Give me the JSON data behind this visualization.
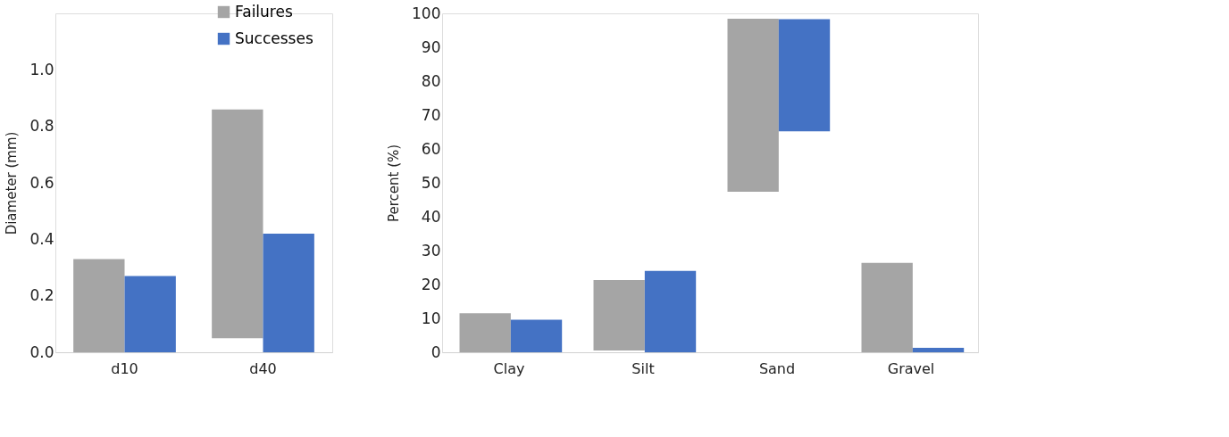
{
  "chart_data": [
    {
      "type": "bar",
      "ylabel": "Diameter (mm)",
      "categories": [
        "d10",
        "d40"
      ],
      "ylim": [
        0,
        1.2
      ],
      "yticks": [
        {
          "value": 0,
          "label": "0.0"
        },
        0.2,
        0.4,
        0.6,
        0.8,
        {
          "value": 1,
          "label": "1.0"
        }
      ],
      "grid": false,
      "legend": "top right",
      "series": [
        {
          "name": "Failures",
          "color": "#a5a5a5",
          "base": [
            0,
            0.05
          ],
          "values": [
            0.33,
            0.81
          ]
        },
        {
          "name": "Successes",
          "color": "#4472c4",
          "base": [
            0,
            0
          ],
          "values": [
            0.27,
            0.42
          ]
        }
      ]
    },
    {
      "type": "bar",
      "ylabel": "Percent (%)",
      "categories": [
        "Clay",
        "Silt",
        "Sand",
        "Gravel"
      ],
      "ylim": [
        0,
        100
      ],
      "yticks": [
        0,
        10,
        20,
        30,
        40,
        50,
        60,
        70,
        80,
        90,
        100
      ],
      "grid": false,
      "legend": false,
      "series": [
        {
          "name": "Failures",
          "color": "#a5a5a5",
          "base": [
            0,
            0.5,
            47.4,
            0
          ],
          "values": [
            11.5,
            20.8,
            51.0,
            26.4
          ]
        },
        {
          "name": "Successes",
          "color": "#4472c4",
          "base": [
            0,
            0,
            65.2,
            0
          ],
          "values": [
            9.6,
            24.0,
            33.1,
            1.3
          ]
        }
      ]
    }
  ]
}
